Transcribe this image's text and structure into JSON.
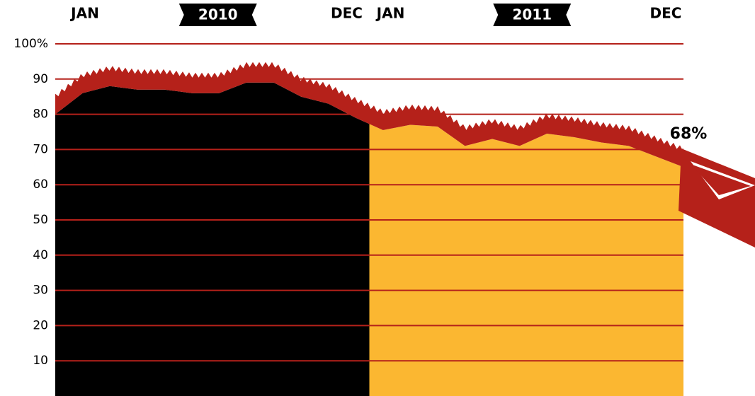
{
  "chart_data": {
    "type": "area",
    "series": [
      {
        "name": "2010",
        "color": "#000000",
        "start_label": "JAN",
        "end_label": "DEC",
        "values": [
          80,
          86,
          88,
          87,
          87,
          86,
          86,
          89,
          89,
          85,
          83,
          79
        ]
      },
      {
        "name": "2011",
        "color": "#fbb731",
        "start_label": "JAN",
        "end_label": "DEC",
        "values": [
          75.5,
          77,
          76.5,
          71,
          73,
          71,
          74.5,
          73.5,
          72,
          71,
          68,
          65
        ]
      }
    ],
    "annotation": "68%",
    "band_color": "#b5211a",
    "ylim": [
      0,
      100
    ],
    "yticks": [
      10,
      20,
      30,
      40,
      50,
      60,
      70,
      80,
      90,
      {
        "value": 100,
        "label": "100%"
      }
    ],
    "grid": true
  }
}
